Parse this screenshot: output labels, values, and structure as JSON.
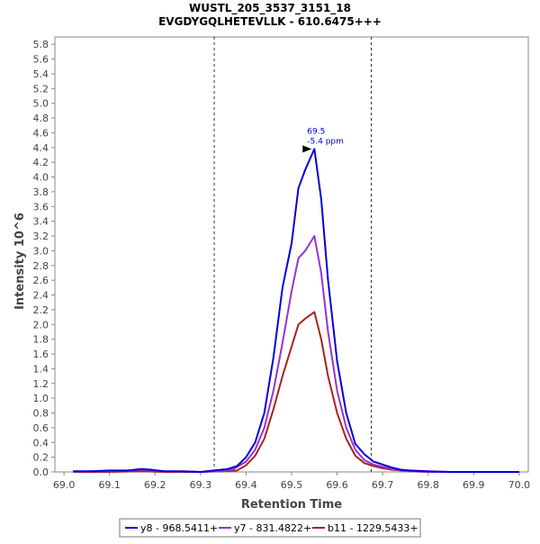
{
  "chart_data": {
    "type": "line",
    "title": "WUSTL_205_3537_3151_18",
    "subtitle": "EVGDYGQLHETEVLLK - 610.6475+++",
    "xlabel": "Retention Time",
    "ylabel": "Intensity 10^6",
    "xlim": [
      68.98,
      70.02
    ],
    "ylim": [
      0,
      5.9
    ],
    "x_ticks": [
      "69.0",
      "69.1",
      "69.2",
      "69.3",
      "69.4",
      "69.5",
      "69.6",
      "69.7",
      "69.8",
      "69.9",
      "70.0"
    ],
    "y_ticks": [
      "0.0",
      "0.2",
      "0.4",
      "0.6",
      "0.8",
      "1.0",
      "1.2",
      "1.4",
      "1.6",
      "1.8",
      "2.0",
      "2.2",
      "2.4",
      "2.6",
      "2.8",
      "3.0",
      "3.2",
      "3.4",
      "3.6",
      "3.8",
      "4.0",
      "4.2",
      "4.4",
      "4.6",
      "4.8",
      "5.0",
      "5.2",
      "5.4",
      "5.6",
      "5.8"
    ],
    "boundaries": [
      69.33,
      69.675
    ],
    "annotation": {
      "x": 69.55,
      "y": 4.38,
      "rt_label": "69.5",
      "ppm_label": "-5.4 ppm"
    },
    "series": [
      {
        "name": "y8 - 968.5411+",
        "color": "#0000dd",
        "points": [
          [
            69.02,
            0.01
          ],
          [
            69.06,
            0.01
          ],
          [
            69.1,
            0.02
          ],
          [
            69.14,
            0.02
          ],
          [
            69.17,
            0.04
          ],
          [
            69.19,
            0.03
          ],
          [
            69.22,
            0.01
          ],
          [
            69.26,
            0.01
          ],
          [
            69.3,
            0.0
          ],
          [
            69.33,
            0.02
          ],
          [
            69.36,
            0.04
          ],
          [
            69.38,
            0.08
          ],
          [
            69.4,
            0.2
          ],
          [
            69.42,
            0.4
          ],
          [
            69.44,
            0.8
          ],
          [
            69.46,
            1.55
          ],
          [
            69.48,
            2.5
          ],
          [
            69.5,
            3.1
          ],
          [
            69.515,
            3.85
          ],
          [
            69.53,
            4.1
          ],
          [
            69.55,
            4.38
          ],
          [
            69.565,
            3.7
          ],
          [
            69.58,
            2.6
          ],
          [
            69.6,
            1.5
          ],
          [
            69.62,
            0.8
          ],
          [
            69.64,
            0.38
          ],
          [
            69.66,
            0.24
          ],
          [
            69.68,
            0.14
          ],
          [
            69.7,
            0.1
          ],
          [
            69.72,
            0.06
          ],
          [
            69.74,
            0.03
          ],
          [
            69.76,
            0.02
          ],
          [
            69.8,
            0.01
          ],
          [
            69.85,
            0.0
          ],
          [
            69.9,
            0.0
          ],
          [
            70.0,
            0.0
          ]
        ]
      },
      {
        "name": "y7 - 831.4822+",
        "color": "#9933cc",
        "points": [
          [
            69.02,
            0.0
          ],
          [
            69.06,
            0.01
          ],
          [
            69.1,
            0.01
          ],
          [
            69.14,
            0.02
          ],
          [
            69.17,
            0.03
          ],
          [
            69.19,
            0.02
          ],
          [
            69.22,
            0.01
          ],
          [
            69.3,
            0.0
          ],
          [
            69.34,
            0.01
          ],
          [
            69.37,
            0.03
          ],
          [
            69.4,
            0.14
          ],
          [
            69.42,
            0.3
          ],
          [
            69.44,
            0.6
          ],
          [
            69.46,
            1.1
          ],
          [
            69.48,
            1.75
          ],
          [
            69.5,
            2.45
          ],
          [
            69.515,
            2.9
          ],
          [
            69.53,
            3.0
          ],
          [
            69.55,
            3.2
          ],
          [
            69.565,
            2.7
          ],
          [
            69.58,
            1.9
          ],
          [
            69.6,
            1.1
          ],
          [
            69.62,
            0.6
          ],
          [
            69.64,
            0.3
          ],
          [
            69.66,
            0.16
          ],
          [
            69.68,
            0.1
          ],
          [
            69.7,
            0.07
          ],
          [
            69.72,
            0.04
          ],
          [
            69.76,
            0.01
          ],
          [
            69.8,
            0.0
          ],
          [
            70.0,
            0.0
          ]
        ]
      },
      {
        "name": "b11 - 1229.5433+",
        "color": "#aa2222",
        "points": [
          [
            69.02,
            0.0
          ],
          [
            69.1,
            0.0
          ],
          [
            69.17,
            0.01
          ],
          [
            69.22,
            0.0
          ],
          [
            69.3,
            0.0
          ],
          [
            69.35,
            0.01
          ],
          [
            69.38,
            0.02
          ],
          [
            69.4,
            0.09
          ],
          [
            69.42,
            0.22
          ],
          [
            69.44,
            0.45
          ],
          [
            69.46,
            0.85
          ],
          [
            69.48,
            1.3
          ],
          [
            69.5,
            1.7
          ],
          [
            69.515,
            2.0
          ],
          [
            69.53,
            2.08
          ],
          [
            69.55,
            2.17
          ],
          [
            69.565,
            1.8
          ],
          [
            69.58,
            1.3
          ],
          [
            69.6,
            0.8
          ],
          [
            69.62,
            0.45
          ],
          [
            69.64,
            0.22
          ],
          [
            69.66,
            0.12
          ],
          [
            69.68,
            0.08
          ],
          [
            69.7,
            0.05
          ],
          [
            69.72,
            0.03
          ],
          [
            69.76,
            0.01
          ],
          [
            69.8,
            0.0
          ],
          [
            70.0,
            0.0
          ]
        ]
      }
    ]
  }
}
